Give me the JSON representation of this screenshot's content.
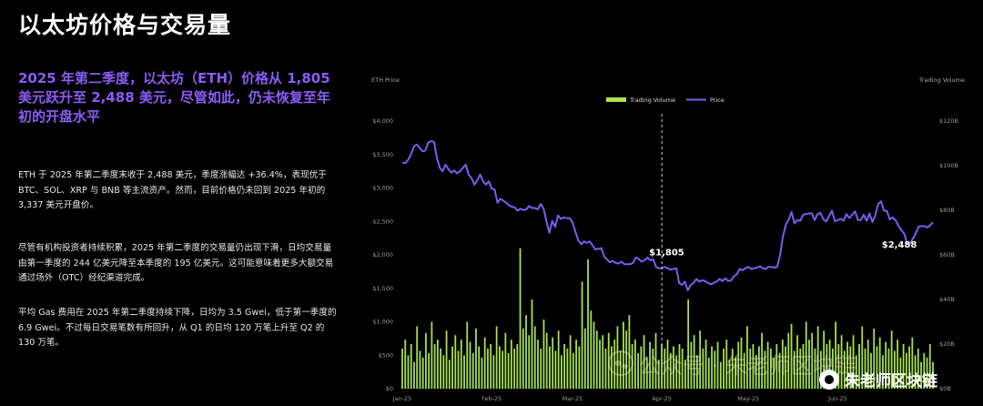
{
  "page": {
    "title": "以太坊价格与交易量",
    "subtitle": "2025 年第二季度，以太坊（ETH）价格从 1,805 美元跃升至 2,488 美元，尽管如此，仍未恢复至年初的开盘水平",
    "paragraphs": [
      "ETH 于 2025 年第二季度末收于 2,488 美元，季度涨幅达 +36.4%，表现优于 BTC、SOL、XRP 与 BNB 等主流资产。然而，目前价格仍未回到 2025 年初的 3,337 美元开盘价。",
      "尽管有机构投资者持续积累，2025 年第二季度的交易量仍出现下滑，日均交易量由第一季度的 244 亿美元降至本季度的 195 亿美元。这可能意味着更多大额交易通过场外（OTC）经纪渠道完成。",
      "平均 Gas 费用在 2025 年第二季度持续下降，日均为 3.5 Gwei，低于第一季度的 6.9 Gwei。不过每日交易笔数有所回升，从 Q1 的日均 120 万笔上升至 Q2 的 130 万笔。"
    ],
    "watermark": "公众号 · 朱老师区块链",
    "watermark_brand": "朱老师区块链"
  },
  "colors": {
    "title": "#ffffff",
    "subtitle": "#8a5cf5",
    "price_line": "#7c5cf0",
    "volume_bar": "#a6e34f",
    "background": "#000000"
  },
  "chart_data": {
    "type": "bar+line",
    "ylabel_left": "ETH Price",
    "ylabel_right": "Trading Volume",
    "legend": [
      "Trading Volume",
      "Price"
    ],
    "legend_position": "top-center",
    "x_ticks": [
      "Jan-25",
      "Feb-25",
      "Mar-25",
      "Apr-25",
      "May-25",
      "Jun-25"
    ],
    "y_left_ticks": [
      "$0",
      "$500",
      "$1,000",
      "$1,500",
      "$2,000",
      "$2,500",
      "$3,000",
      "$3,500",
      "$4,000"
    ],
    "y_left_range": [
      0,
      4000
    ],
    "y_right_ticks": [
      "$0B",
      "$20B",
      "$40B",
      "$60B",
      "$80B",
      "$100B",
      "$120B"
    ],
    "y_right_range": [
      0,
      120
    ],
    "grid": false,
    "start_label": "Jan-25",
    "annotations": [
      {
        "text": "$1,805",
        "day": 90,
        "value": 1805,
        "dashed_vline": true
      },
      {
        "text": "$2,488",
        "day": 180,
        "value": 2488
      }
    ],
    "series": [
      {
        "name": "Price",
        "kind": "line",
        "values": [
          3380,
          3370,
          3420,
          3500,
          3620,
          3650,
          3600,
          3550,
          3560,
          3680,
          3700,
          3690,
          3450,
          3300,
          3250,
          3350,
          3280,
          3230,
          3260,
          3220,
          3250,
          3300,
          3350,
          3200,
          3150,
          3050,
          3120,
          3200,
          3100,
          3050,
          3100,
          2990,
          2980,
          2780,
          2840,
          2810,
          2780,
          2740,
          2720,
          2710,
          2660,
          2690,
          2670,
          2680,
          2730,
          2700,
          2700,
          2680,
          2760,
          2690,
          2500,
          2330,
          2510,
          2420,
          2590,
          2540,
          2560,
          2550,
          2550,
          2490,
          2350,
          2220,
          2160,
          2200,
          2180,
          2200,
          2140,
          2080,
          2090,
          2100,
          1980,
          1930,
          1890,
          1910,
          1880,
          1870,
          1900,
          1860,
          1860,
          1860,
          1880,
          1960,
          1940,
          1900,
          1920,
          1960,
          1920,
          1930,
          1820,
          1800,
          1805,
          1820,
          1800,
          1780,
          1790,
          1800,
          1580,
          1550,
          1600,
          1470,
          1550,
          1580,
          1640,
          1600,
          1620,
          1610,
          1580,
          1560,
          1580,
          1600,
          1640,
          1610,
          1650,
          1610,
          1620,
          1680,
          1710,
          1790,
          1770,
          1800,
          1820,
          1790,
          1800,
          1810,
          1830,
          1800,
          1790,
          1820,
          1820,
          1810,
          1820,
          2000,
          2280,
          2450,
          2530,
          2640,
          2470,
          2520,
          2510,
          2600,
          2610,
          2620,
          2620,
          2520,
          2610,
          2630,
          2530,
          2500,
          2580,
          2660,
          2500,
          2520,
          2540,
          2510,
          2610,
          2550,
          2600,
          2650,
          2520,
          2520,
          2600,
          2510,
          2620,
          2490,
          2590,
          2760,
          2800,
          2660,
          2660,
          2530,
          2560,
          2520,
          2440,
          2370,
          2320,
          2180,
          2160,
          2240,
          2320,
          2420,
          2430,
          2430,
          2410,
          2440,
          2488
        ]
      },
      {
        "name": "Trading Volume",
        "kind": "bar",
        "unit": "B",
        "values": [
          18,
          22,
          15,
          20,
          12,
          28,
          17,
          14,
          25,
          16,
          30,
          20,
          22,
          18,
          15,
          26,
          13,
          19,
          24,
          17,
          22,
          15,
          30,
          21,
          16,
          27,
          19,
          14,
          23,
          18,
          20,
          15,
          28,
          19,
          17,
          25,
          16,
          22,
          18,
          20,
          63,
          27,
          33,
          24,
          40,
          28,
          22,
          18,
          31,
          25,
          19,
          23,
          17,
          26,
          15,
          20,
          18,
          24,
          16,
          22,
          19,
          48,
          27,
          58,
          35,
          30,
          26,
          22,
          24,
          18,
          25,
          19,
          22,
          28,
          17,
          30,
          26,
          33,
          20,
          22,
          16,
          19,
          24,
          14,
          21,
          18,
          25,
          13,
          20,
          18,
          22,
          16,
          19,
          15,
          20,
          18,
          13,
          40,
          21,
          24,
          15,
          26,
          18,
          22,
          14,
          19,
          17,
          21,
          12,
          18,
          22,
          13,
          18,
          14,
          21,
          23,
          16,
          28,
          18,
          20,
          15,
          19,
          25,
          17,
          21,
          18,
          14,
          20,
          16,
          22,
          19,
          25,
          29,
          17,
          24,
          18,
          20,
          30,
          22,
          25,
          18,
          28,
          17,
          26,
          20,
          22,
          18,
          30,
          20,
          24,
          17,
          21,
          19,
          24,
          15,
          20,
          28,
          18,
          22,
          16,
          27,
          19,
          23,
          15,
          21,
          18,
          26,
          17,
          22,
          14,
          20,
          16,
          19,
          23,
          15,
          18,
          12,
          16,
          14,
          20,
          12
        ]
      }
    ]
  }
}
